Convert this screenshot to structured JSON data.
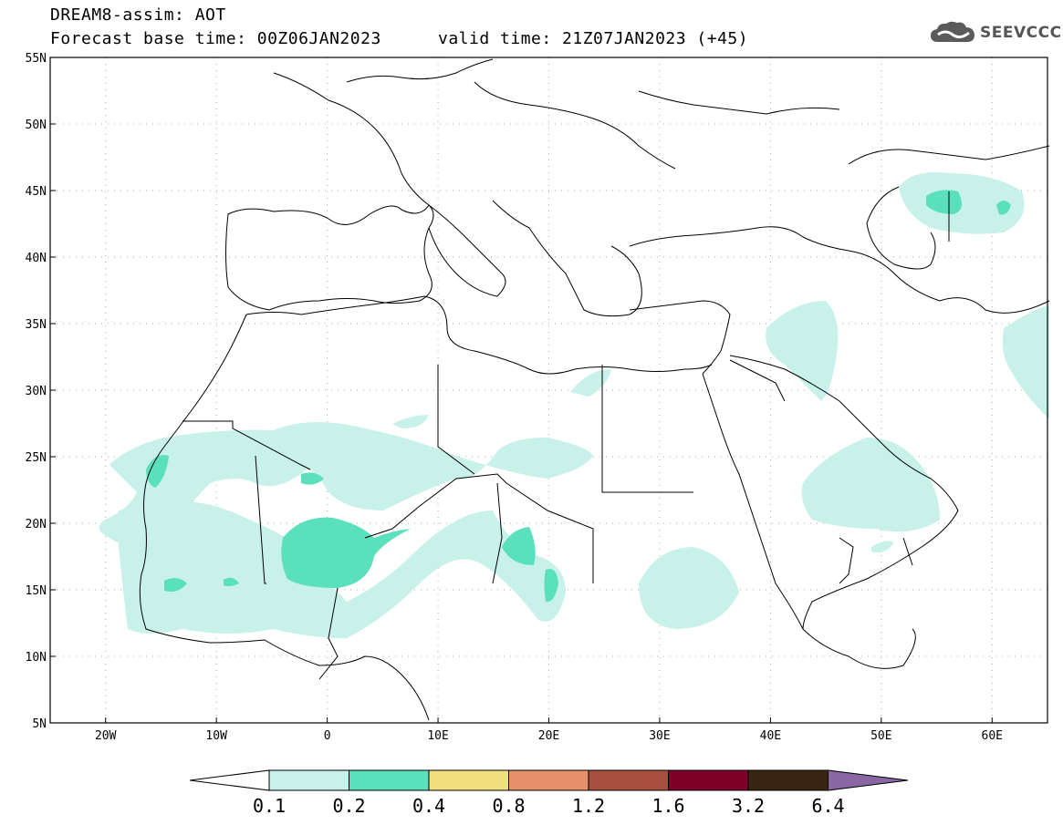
{
  "header": {
    "title_line1": "DREAM8-assim: AOT",
    "title_line2": "Forecast base time: 00Z06JAN2023",
    "valid_time": "valid time: 21Z07JAN2023 (+45)",
    "logo_text": "SEEVCCC"
  },
  "map": {
    "variable": "AOT",
    "lon_range": [
      -25,
      65
    ],
    "lat_range": [
      5,
      55
    ],
    "lat_labels": [
      "55N",
      "50N",
      "45N",
      "40N",
      "35N",
      "30N",
      "25N",
      "20N",
      "15N",
      "10N",
      "5N"
    ],
    "lon_labels": [
      "20W",
      "10W",
      "0",
      "10E",
      "20E",
      "30E",
      "40E",
      "50E",
      "60E"
    ],
    "grid": true
  },
  "colorbar": {
    "labels": [
      "0.1",
      "0.2",
      "0.4",
      "0.8",
      "1.2",
      "1.6",
      "3.2",
      "6.4"
    ],
    "colors": [
      "#c8f1ea",
      "#5be0bd",
      "#f1e07c",
      "#e8906a",
      "#a84e3e",
      "#7c0028",
      "#3a2512",
      "#8a67a3"
    ]
  }
}
